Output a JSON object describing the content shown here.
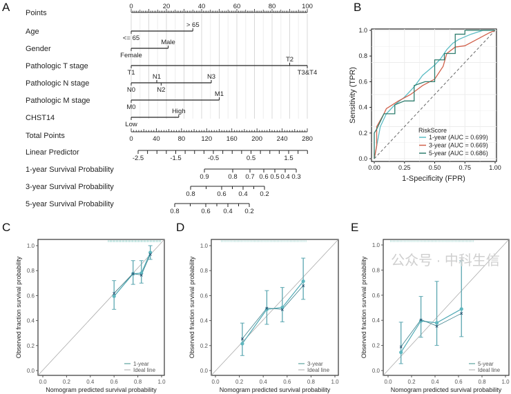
{
  "panels": [
    "A",
    "B",
    "C",
    "D",
    "E"
  ],
  "watermark": "公众号 · 中科生信",
  "chart_data": [
    {
      "type": "nomogram",
      "rows": [
        {
          "label": "Points",
          "scale": {
            "min": 0,
            "max": 100,
            "ticks": [
              0,
              20,
              40,
              60,
              80,
              100
            ]
          }
        },
        {
          "label": "Age",
          "levels": [
            {
              "name": "<= 65",
              "points": 0,
              "pos": "below"
            },
            {
              "name": "> 65",
              "points": 35,
              "pos": "above"
            }
          ]
        },
        {
          "label": "Gender",
          "levels": [
            {
              "name": "Female",
              "points": 0,
              "pos": "below"
            },
            {
              "name": "Male",
              "points": 21,
              "pos": "above"
            }
          ]
        },
        {
          "label": "Pathologic T stage",
          "levels": [
            {
              "name": "T1",
              "points": 0,
              "pos": "below"
            },
            {
              "name": "T2",
              "points": 90,
              "pos": "above"
            },
            {
              "name": "T3&T4",
              "points": 100,
              "pos": "below"
            }
          ]
        },
        {
          "label": "Pathologic N stage",
          "levels": [
            {
              "name": "N0",
              "points": 0,
              "pos": "below"
            },
            {
              "name": "N1",
              "points": 14.5,
              "pos": "above"
            },
            {
              "name": "N2",
              "points": 17,
              "pos": "below"
            },
            {
              "name": "N3",
              "points": 45.5,
              "pos": "above"
            }
          ]
        },
        {
          "label": "Pathologic M stage",
          "levels": [
            {
              "name": "M0",
              "points": 0,
              "pos": "below"
            },
            {
              "name": "M1",
              "points": 50,
              "pos": "above"
            }
          ]
        },
        {
          "label": "CHST14",
          "levels": [
            {
              "name": "Low",
              "points": 0,
              "pos": "below"
            },
            {
              "name": "High",
              "points": 27,
              "pos": "above"
            }
          ]
        },
        {
          "label": "Total Points",
          "scale": {
            "min": 0,
            "max": 280,
            "ticks": [
              0,
              40,
              80,
              120,
              160,
              200,
              240,
              280
            ]
          }
        },
        {
          "label": "Linear Predictor",
          "ticks": [
            "-2.5",
            "-1.5",
            "-0.5",
            "0.5",
            "1.5"
          ],
          "range": [
            -2.5,
            2.0
          ]
        },
        {
          "label": "1-year Survival Probability",
          "ticks": [
            "0.9",
            "0.8",
            "0.7",
            "0.6",
            "0.5",
            "0.4",
            "0.3"
          ]
        },
        {
          "label": "3-year Survival Probability",
          "ticks": [
            "0.8",
            "0.6",
            "0.4",
            "0.2"
          ]
        },
        {
          "label": "5-year Survival Probability",
          "ticks": [
            "0.8",
            "0.6",
            "0.4",
            "0.2"
          ]
        }
      ]
    },
    {
      "type": "line",
      "title": "",
      "xlabel": "1-Specificity (FPR)",
      "ylabel": "Sensitivity (TPR)",
      "xlim": [
        0,
        1
      ],
      "ylim": [
        0,
        1
      ],
      "xticks": [
        "0.00",
        "0.25",
        "0.50",
        "0.75",
        "1.00"
      ],
      "yticks": [
        "0.0",
        "0.2",
        "0.4",
        "0.6",
        "0.8",
        "1.0"
      ],
      "legend_title": "RiskScore",
      "legend_position": "bottom-right",
      "series": [
        {
          "name": "1-year (AUC = 0.699)",
          "color": "#5bbcc4",
          "points": [
            [
              0,
              0
            ],
            [
              0.01,
              0.05
            ],
            [
              0.02,
              0.1
            ],
            [
              0.05,
              0.25
            ],
            [
              0.1,
              0.35
            ],
            [
              0.17,
              0.42
            ],
            [
              0.25,
              0.48
            ],
            [
              0.33,
              0.56
            ],
            [
              0.4,
              0.65
            ],
            [
              0.5,
              0.73
            ],
            [
              0.55,
              0.78
            ],
            [
              0.6,
              0.85
            ],
            [
              0.65,
              0.9
            ],
            [
              0.7,
              0.93
            ],
            [
              0.8,
              0.97
            ],
            [
              0.9,
              1
            ],
            [
              1,
              1
            ]
          ]
        },
        {
          "name": "3-year (AUC = 0.669)",
          "color": "#d0604a",
          "points": [
            [
              0,
              0
            ],
            [
              0.02,
              0.1
            ],
            [
              0.02,
              0.25
            ],
            [
              0.08,
              0.35
            ],
            [
              0.1,
              0.39
            ],
            [
              0.2,
              0.45
            ],
            [
              0.3,
              0.5
            ],
            [
              0.4,
              0.57
            ],
            [
              0.5,
              0.62
            ],
            [
              0.57,
              0.72
            ],
            [
              0.6,
              0.82
            ],
            [
              0.67,
              0.87
            ],
            [
              0.75,
              0.88
            ],
            [
              0.85,
              0.93
            ],
            [
              0.95,
              0.98
            ],
            [
              1,
              1
            ]
          ]
        },
        {
          "name": "5-year (AUC = 0.686)",
          "color": "#2e7d6e",
          "points": [
            [
              0,
              0
            ],
            [
              0,
              0.2
            ],
            [
              0.02,
              0.23
            ],
            [
              0.08,
              0.35
            ],
            [
              0.17,
              0.35
            ],
            [
              0.17,
              0.42
            ],
            [
              0.25,
              0.45
            ],
            [
              0.33,
              0.45
            ],
            [
              0.33,
              0.57
            ],
            [
              0.42,
              0.6
            ],
            [
              0.5,
              0.6
            ],
            [
              0.5,
              0.77
            ],
            [
              0.58,
              0.77
            ],
            [
              0.58,
              0.82
            ],
            [
              0.67,
              0.82
            ],
            [
              0.67,
              0.97
            ],
            [
              0.75,
              0.97
            ],
            [
              0.75,
              1
            ],
            [
              1,
              1
            ]
          ]
        }
      ]
    },
    {
      "type": "scatter",
      "xlabel": "Nomogram predicted survival probability",
      "ylabel": "Observed fraction survival probability",
      "xlim": [
        0,
        1
      ],
      "ylim": [
        0,
        1
      ],
      "ticks": [
        "0.0",
        "0.2",
        "0.4",
        "0.6",
        "0.8",
        "1.0"
      ],
      "legend": [
        "1-year",
        "Ideal line"
      ],
      "predicted": [
        0.6,
        0.76,
        0.83,
        0.905
      ],
      "observed": [
        0.595,
        0.775,
        0.78,
        0.945
      ],
      "corrected": [
        0.62,
        0.775,
        0.765,
        0.93
      ],
      "ci_low": [
        0.49,
        0.69,
        0.7,
        0.89
      ],
      "ci_high": [
        0.72,
        0.88,
        0.88,
        1.0
      ]
    },
    {
      "type": "scatter",
      "xlabel": "Nomogram predicted survival probability",
      "ylabel": "Observed fraction survival probability",
      "xlim": [
        0,
        1
      ],
      "ylim": [
        0,
        1
      ],
      "ticks": [
        "0.0",
        "0.2",
        "0.4",
        "0.6",
        "0.8",
        "1.0"
      ],
      "legend": [
        "3-year",
        "Ideal line"
      ],
      "predicted": [
        0.225,
        0.43,
        0.56,
        0.735
      ],
      "observed": [
        0.215,
        0.49,
        0.505,
        0.715
      ],
      "corrected": [
        0.255,
        0.5,
        0.49,
        0.68
      ],
      "ci_low": [
        0.12,
        0.37,
        0.39,
        0.57
      ],
      "ci_high": [
        0.38,
        0.64,
        0.665,
        0.9
      ]
    },
    {
      "type": "scatter",
      "xlabel": "Nomogram predicted survival probability",
      "ylabel": "Observed fraction survival probability",
      "xlim": [
        0,
        1
      ],
      "ylim": [
        0,
        1
      ],
      "ticks": [
        "0.0",
        "0.2",
        "0.4",
        "0.6",
        "0.8",
        "1.0"
      ],
      "legend": [
        "5-year",
        "Ideal line"
      ],
      "predicted": [
        0.11,
        0.28,
        0.415,
        0.625
      ],
      "observed": [
        0.145,
        0.395,
        0.38,
        0.49
      ],
      "corrected": [
        0.19,
        0.405,
        0.355,
        0.455
      ],
      "ci_low": [
        0.055,
        0.265,
        0.2,
        0.27
      ],
      "ci_high": [
        0.385,
        0.59,
        0.71,
        0.875
      ]
    }
  ]
}
